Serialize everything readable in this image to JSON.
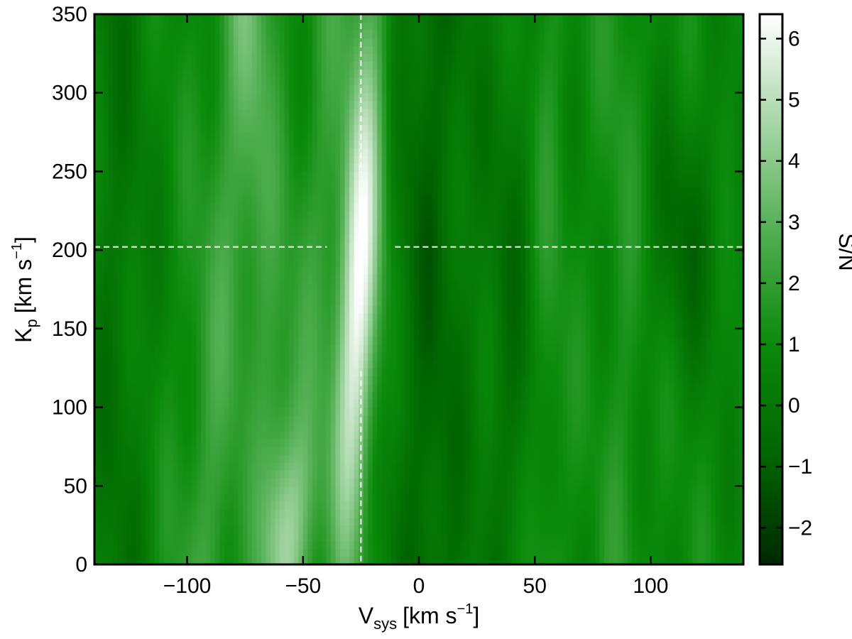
{
  "chart_data": {
    "type": "heatmap",
    "title": "",
    "xlabel": {
      "main": "V",
      "sub": "sys",
      "unit": "[km s",
      "exp": "−1",
      "close": "]"
    },
    "ylabel": {
      "main": "K",
      "sub": "p",
      "unit": "[km s",
      "exp": "−1",
      "close": "]"
    },
    "colorbar_label": "S/N",
    "xlim": [
      -140,
      140
    ],
    "ylim": [
      0,
      350
    ],
    "clim": [
      -2.6,
      6.4
    ],
    "x_ticks": [
      -100,
      -50,
      0,
      50,
      100
    ],
    "x_tick_labels": [
      "−100",
      "−50",
      "0",
      "50",
      "100"
    ],
    "y_ticks": [
      0,
      50,
      100,
      150,
      200,
      250,
      300,
      350
    ],
    "y_tick_labels": [
      "0",
      "50",
      "100",
      "150",
      "200",
      "250",
      "300",
      "350"
    ],
    "colorbar_ticks": [
      -2,
      -1,
      0,
      1,
      2,
      3,
      4,
      5,
      6
    ],
    "colorbar_tick_labels": [
      "−2",
      "−1",
      "0",
      "1",
      "2",
      "3",
      "4",
      "5",
      "6"
    ],
    "colormap": [
      "#002800",
      "#006600",
      "#0a8a0a",
      "#4fae4f",
      "#a6d6a6",
      "#ffffff"
    ],
    "peak": {
      "vsys": -25,
      "kp": 202,
      "snr": 6.2
    },
    "crosshair_color": "#ffffff",
    "grid": false,
    "legend": "none"
  }
}
